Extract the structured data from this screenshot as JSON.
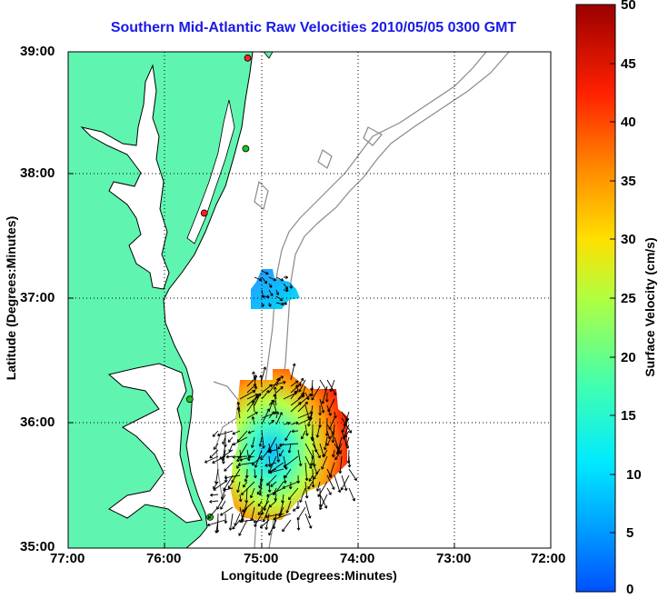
{
  "title": "Southern Mid-Atlantic Raw Velocities 2010/05/05 0300 GMT",
  "axes": {
    "xlabel": "Longitude (Degrees:Minutes)",
    "ylabel": "Latitude (Degrees:Minutes)",
    "x_ticks": [
      "77:00",
      "76:00",
      "75:00",
      "74:00",
      "73:00",
      "72:00"
    ],
    "y_ticks": [
      "39:00",
      "38:00",
      "37:00",
      "36:00",
      "35:00"
    ],
    "grid": "dotted"
  },
  "colorbar": {
    "label": "Surface Velocity (cm/s)",
    "ticks": [
      "50",
      "45",
      "40",
      "35",
      "30",
      "25",
      "20",
      "15",
      "10",
      "5",
      "0"
    ],
    "min": 0,
    "max": 50,
    "colormap": "jet"
  },
  "colors": {
    "land": "#5ff5b0",
    "coast": "#000000",
    "bathymetry": "#8a8a8a",
    "title": "#1a1ae6"
  },
  "stations": [
    {
      "lon": -75.14,
      "lat": 38.95,
      "color": "#ff2020"
    },
    {
      "lon": -75.16,
      "lat": 38.22,
      "color": "#20c020"
    },
    {
      "lon": -75.59,
      "lat": 37.7,
      "color": "#ff2020"
    },
    {
      "lon": -75.74,
      "lat": 36.2,
      "color": "#20c020"
    },
    {
      "lon": -75.53,
      "lat": 35.25,
      "color": "#20c020"
    }
  ],
  "regions": [
    {
      "name": "northern-patch",
      "speed_range": [
        5,
        12
      ]
    },
    {
      "name": "southern-patch",
      "speed_range": [
        3,
        48
      ]
    }
  ]
}
